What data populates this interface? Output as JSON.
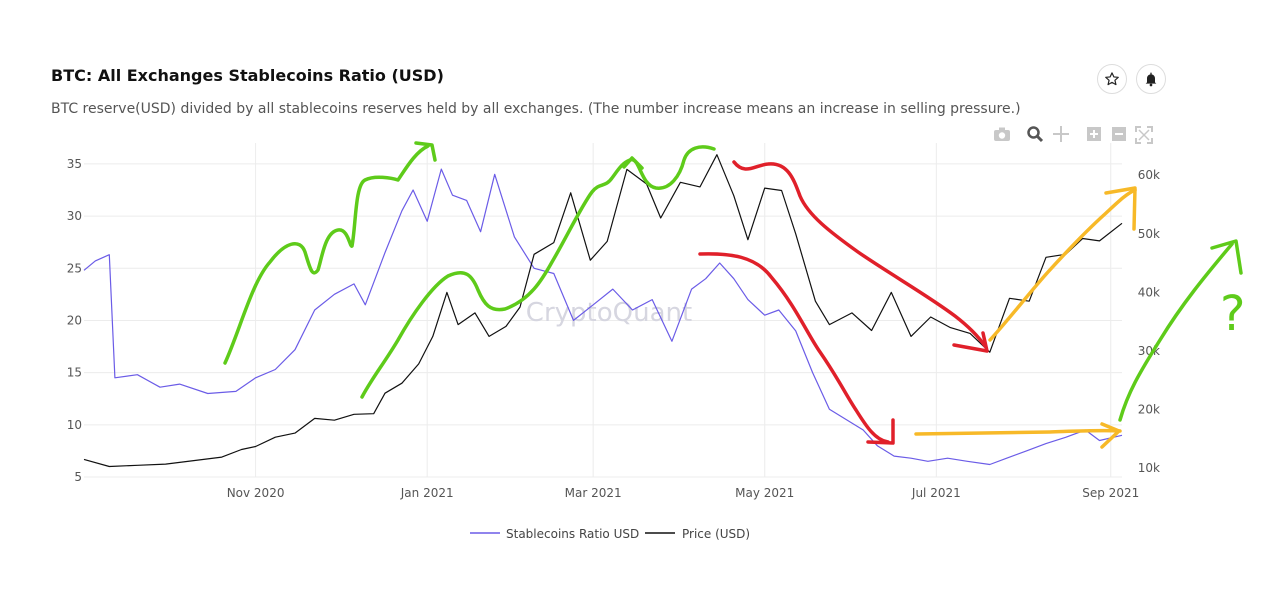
{
  "header": {
    "title": "BTC: All Exchanges Stablecoins Ratio (USD)",
    "subtitle": "BTC reserve(USD) divided by all stablecoins reserves held by all exchanges. (The number increase means an increase in selling pressure.)"
  },
  "toolbar": {
    "icons": [
      "camera-icon",
      "zoom-icon",
      "pan-icon",
      "zoom-in-icon",
      "zoom-out-icon",
      "autoscale-icon"
    ],
    "star_icon": "star-icon",
    "bell_icon": "bell-icon"
  },
  "watermark": "CryptoQuant",
  "colors": {
    "ratio": "#6b5ce7",
    "price": "#111111",
    "green_annotation": "#5ecb1a",
    "red_annotation": "#e0202a",
    "yellow_annotation": "#f7b928"
  },
  "annotation_text": "?",
  "chart_data": {
    "type": "line",
    "x_range": [
      "2020-09-01",
      "2021-09-05"
    ],
    "x_ticks": [
      {
        "date": "2020-11-01",
        "label": "Nov 2020"
      },
      {
        "date": "2021-01-01",
        "label": "Jan 2021"
      },
      {
        "date": "2021-03-01",
        "label": "Mar 2021"
      },
      {
        "date": "2021-05-01",
        "label": "May 2021"
      },
      {
        "date": "2021-07-01",
        "label": "Jul 2021"
      },
      {
        "date": "2021-09-01",
        "label": "Sep 2021"
      }
    ],
    "y_left": {
      "range": [
        5,
        37
      ],
      "ticks": [
        5,
        10,
        15,
        20,
        25,
        30,
        35
      ]
    },
    "y_right": {
      "range": [
        8500,
        65500
      ],
      "ticks": [
        10000,
        20000,
        30000,
        40000,
        50000,
        60000
      ],
      "tick_labels": [
        "10k",
        "20k",
        "30k",
        "40k",
        "50k",
        "60k"
      ]
    },
    "grid": true,
    "legend_position": "bottom-center",
    "series": [
      {
        "name": "Stablecoins Ratio USD",
        "axis": "left",
        "points": [
          [
            "2020-09-01",
            24.8
          ],
          [
            "2020-09-05",
            25.7
          ],
          [
            "2020-09-10",
            26.3
          ],
          [
            "2020-09-12",
            14.5
          ],
          [
            "2020-09-20",
            14.8
          ],
          [
            "2020-09-28",
            13.6
          ],
          [
            "2020-10-05",
            13.9
          ],
          [
            "2020-10-15",
            13.0
          ],
          [
            "2020-10-25",
            13.2
          ],
          [
            "2020-11-01",
            14.5
          ],
          [
            "2020-11-08",
            15.3
          ],
          [
            "2020-11-15",
            17.2
          ],
          [
            "2020-11-22",
            21.0
          ],
          [
            "2020-11-29",
            22.5
          ],
          [
            "2020-12-06",
            23.5
          ],
          [
            "2020-12-10",
            21.5
          ],
          [
            "2020-12-17",
            26.5
          ],
          [
            "2020-12-23",
            30.5
          ],
          [
            "2020-12-27",
            32.5
          ],
          [
            "2021-01-01",
            29.5
          ],
          [
            "2021-01-06",
            34.5
          ],
          [
            "2021-01-10",
            32.0
          ],
          [
            "2021-01-15",
            31.5
          ],
          [
            "2021-01-20",
            28.5
          ],
          [
            "2021-01-25",
            34.0
          ],
          [
            "2021-02-01",
            28.0
          ],
          [
            "2021-02-08",
            25.0
          ],
          [
            "2021-02-15",
            24.5
          ],
          [
            "2021-02-22",
            20.0
          ],
          [
            "2021-03-01",
            21.5
          ],
          [
            "2021-03-08",
            23.0
          ],
          [
            "2021-03-15",
            21.0
          ],
          [
            "2021-03-22",
            22.0
          ],
          [
            "2021-03-29",
            18.0
          ],
          [
            "2021-04-05",
            23.0
          ],
          [
            "2021-04-10",
            24.0
          ],
          [
            "2021-04-15",
            25.5
          ],
          [
            "2021-04-20",
            24.0
          ],
          [
            "2021-04-25",
            22.0
          ],
          [
            "2021-05-01",
            20.5
          ],
          [
            "2021-05-06",
            21.0
          ],
          [
            "2021-05-12",
            19.0
          ],
          [
            "2021-05-18",
            15.0
          ],
          [
            "2021-05-24",
            11.5
          ],
          [
            "2021-05-30",
            10.5
          ],
          [
            "2021-06-05",
            9.5
          ],
          [
            "2021-06-10",
            8.0
          ],
          [
            "2021-06-16",
            7.0
          ],
          [
            "2021-06-22",
            6.8
          ],
          [
            "2021-06-28",
            6.5
          ],
          [
            "2021-07-05",
            6.8
          ],
          [
            "2021-07-12",
            6.5
          ],
          [
            "2021-07-20",
            6.2
          ],
          [
            "2021-07-26",
            6.8
          ],
          [
            "2021-08-02",
            7.5
          ],
          [
            "2021-08-09",
            8.2
          ],
          [
            "2021-08-16",
            8.8
          ],
          [
            "2021-08-23",
            9.5
          ],
          [
            "2021-08-28",
            8.5
          ],
          [
            "2021-09-05",
            9.0
          ]
        ]
      },
      {
        "name": "Price (USD)",
        "axis": "right",
        "points": [
          [
            "2020-09-01",
            11500
          ],
          [
            "2020-09-10",
            10300
          ],
          [
            "2020-09-20",
            10500
          ],
          [
            "2020-09-30",
            10700
          ],
          [
            "2020-10-10",
            11300
          ],
          [
            "2020-10-20",
            11900
          ],
          [
            "2020-10-27",
            13200
          ],
          [
            "2020-11-01",
            13700
          ],
          [
            "2020-11-08",
            15300
          ],
          [
            "2020-11-15",
            16000
          ],
          [
            "2020-11-22",
            18500
          ],
          [
            "2020-11-29",
            18200
          ],
          [
            "2020-12-06",
            19200
          ],
          [
            "2020-12-13",
            19300
          ],
          [
            "2020-12-17",
            22800
          ],
          [
            "2020-12-23",
            24500
          ],
          [
            "2020-12-29",
            27800
          ],
          [
            "2021-01-03",
            32500
          ],
          [
            "2021-01-08",
            40000
          ],
          [
            "2021-01-12",
            34500
          ],
          [
            "2021-01-18",
            36500
          ],
          [
            "2021-01-23",
            32500
          ],
          [
            "2021-01-29",
            34200
          ],
          [
            "2021-02-03",
            37500
          ],
          [
            "2021-02-08",
            46500
          ],
          [
            "2021-02-15",
            48500
          ],
          [
            "2021-02-21",
            57000
          ],
          [
            "2021-02-28",
            45500
          ],
          [
            "2021-03-06",
            48700
          ],
          [
            "2021-03-13",
            61000
          ],
          [
            "2021-03-20",
            58500
          ],
          [
            "2021-03-25",
            52700
          ],
          [
            "2021-04-01",
            58800
          ],
          [
            "2021-04-08",
            58000
          ],
          [
            "2021-04-14",
            63500
          ],
          [
            "2021-04-20",
            56500
          ],
          [
            "2021-04-25",
            49000
          ],
          [
            "2021-05-01",
            57800
          ],
          [
            "2021-05-07",
            57400
          ],
          [
            "2021-05-12",
            50000
          ],
          [
            "2021-05-19",
            38500
          ],
          [
            "2021-05-24",
            34500
          ],
          [
            "2021-06-01",
            36500
          ],
          [
            "2021-06-08",
            33500
          ],
          [
            "2021-06-15",
            40000
          ],
          [
            "2021-06-22",
            32500
          ],
          [
            "2021-06-29",
            35800
          ],
          [
            "2021-07-06",
            34000
          ],
          [
            "2021-07-13",
            33000
          ],
          [
            "2021-07-20",
            29800
          ],
          [
            "2021-07-27",
            39000
          ],
          [
            "2021-08-03",
            38500
          ],
          [
            "2021-08-09",
            46000
          ],
          [
            "2021-08-16",
            46500
          ],
          [
            "2021-08-22",
            49200
          ],
          [
            "2021-08-28",
            48800
          ],
          [
            "2021-09-05",
            51800
          ]
        ]
      }
    ]
  }
}
